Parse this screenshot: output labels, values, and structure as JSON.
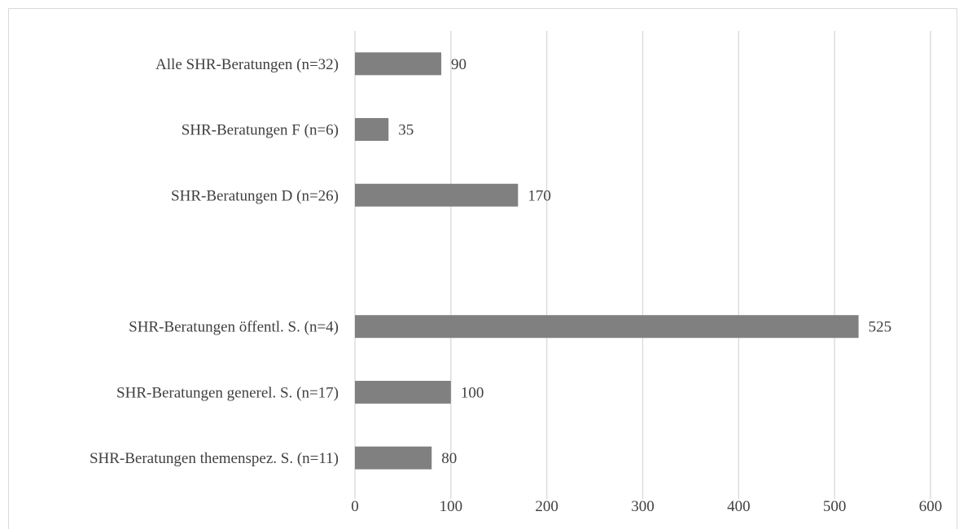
{
  "chart_data": {
    "type": "bar",
    "orientation": "horizontal",
    "categories": [
      "Alle SHR-Beratungen (n=32)",
      "SHR-Beratungen F (n=6)",
      "SHR-Beratungen D (n=26)",
      "",
      "SHR-Beratungen öffentl. S. (n=4)",
      "SHR-Beratungen generel. S. (n=17)",
      "SHR-Beratungen themenspez. S. (n=11)"
    ],
    "values": [
      90,
      35,
      170,
      null,
      525,
      100,
      80
    ],
    "data_labels": [
      "90",
      "35",
      "170",
      "",
      "525",
      "100",
      "80"
    ],
    "xlim": [
      0,
      600
    ],
    "xticks": [
      0,
      100,
      200,
      300,
      400,
      500,
      600
    ],
    "xtick_labels": [
      "0",
      "100",
      "200",
      "300",
      "400",
      "500",
      "600"
    ],
    "grid": true,
    "bar_color": "#808080",
    "grid_color": "#d9d9d9",
    "title": "",
    "xlabel": "",
    "ylabel": ""
  }
}
